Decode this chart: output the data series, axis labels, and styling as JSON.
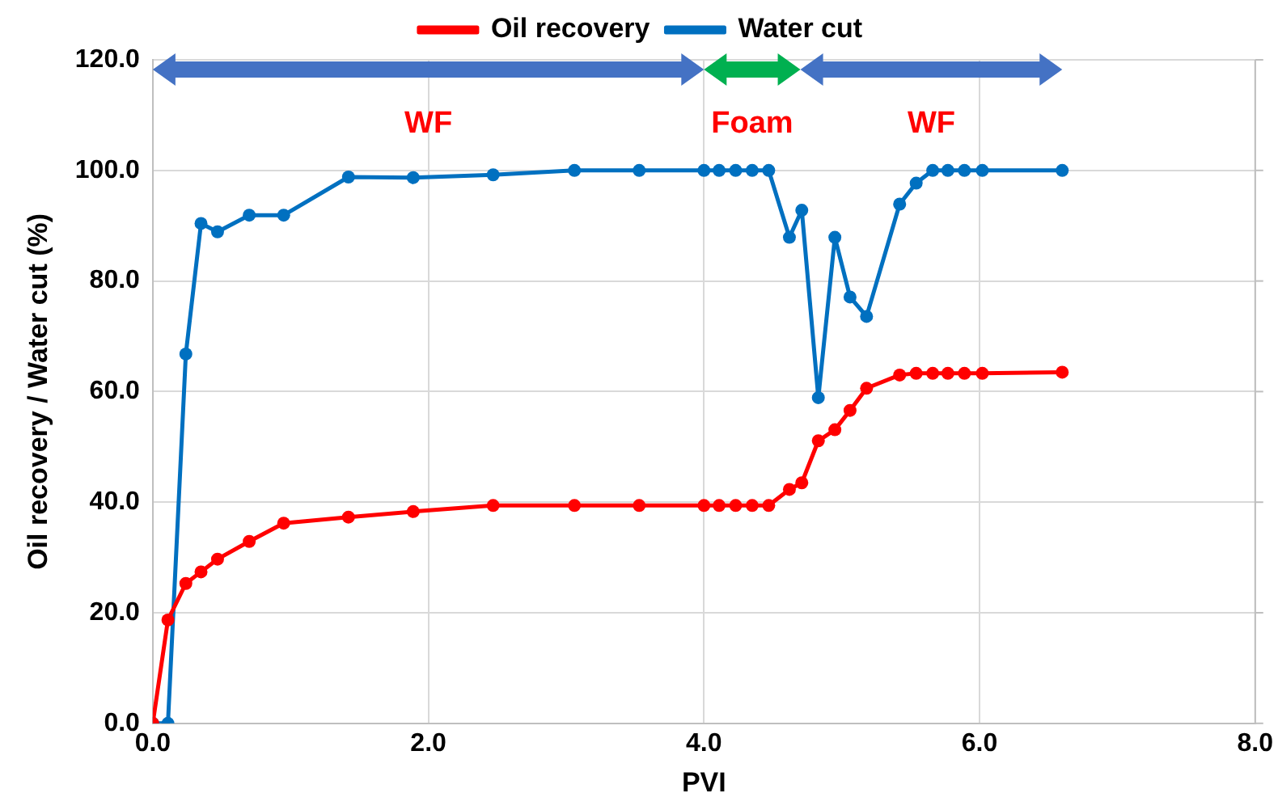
{
  "chart_data": {
    "type": "line",
    "xlabel": "PVI",
    "ylabel": "Oil recovery / Water cut (%)",
    "xlim": [
      0,
      8
    ],
    "xticks": [
      {
        "value": 0,
        "label": "0.0"
      },
      {
        "value": 2,
        "label": "2.0"
      },
      {
        "value": 4,
        "label": "4.0"
      },
      {
        "value": 6,
        "label": "6.0"
      },
      {
        "value": 8,
        "label": "8.0"
      }
    ],
    "ylim": [
      0,
      120
    ],
    "yticks": [
      {
        "value": 0,
        "label": "0.0"
      },
      {
        "value": 20,
        "label": "20.0"
      },
      {
        "value": 40,
        "label": "40.0"
      },
      {
        "value": 60,
        "label": "60.0"
      },
      {
        "value": 80,
        "label": "80.0"
      },
      {
        "value": 100,
        "label": "100.0"
      },
      {
        "value": 120,
        "label": "120.0"
      }
    ],
    "grid": true,
    "legend": "top",
    "marker": "circle",
    "line_style": "solid",
    "series": [
      {
        "name": "Oil recovery",
        "color": "#ff0000",
        "x": [
          0,
          0.11,
          0.24,
          0.35,
          0.47,
          0.7,
          0.95,
          1.42,
          1.89,
          2.47,
          3.06,
          3.53,
          4.0,
          4.11,
          4.23,
          4.35,
          4.47,
          4.62,
          4.71,
          4.83,
          4.95,
          5.06,
          5.18,
          5.42,
          5.54,
          5.66,
          5.77,
          5.89,
          6.02,
          6.6
        ],
        "values": [
          0,
          18.7,
          25.3,
          27.4,
          29.7,
          32.9,
          36.2,
          37.3,
          38.3,
          39.4,
          39.4,
          39.4,
          39.4,
          39.4,
          39.4,
          39.4,
          39.4,
          42.3,
          43.5,
          51.1,
          53.1,
          56.6,
          60.6,
          63.0,
          63.3,
          63.3,
          63.3,
          63.3,
          63.3,
          63.5
        ]
      },
      {
        "name": "Water cut",
        "color": "#0070c0",
        "x": [
          0,
          0.11,
          0.24,
          0.35,
          0.47,
          0.7,
          0.95,
          1.42,
          1.89,
          2.47,
          3.06,
          3.53,
          4.0,
          4.11,
          4.23,
          4.35,
          4.47,
          4.62,
          4.71,
          4.83,
          4.95,
          5.06,
          5.18,
          5.42,
          5.54,
          5.66,
          5.77,
          5.89,
          6.02,
          6.6
        ],
        "values": [
          0,
          0,
          66.8,
          90.4,
          88.9,
          91.9,
          91.9,
          98.8,
          98.7,
          99.2,
          100,
          100,
          100,
          100,
          100,
          100,
          100,
          87.9,
          92.8,
          58.9,
          87.9,
          77.1,
          73.6,
          93.9,
          97.7,
          100,
          100,
          100,
          100,
          100
        ]
      }
    ],
    "annotations": [
      "WF",
      "Foam",
      "WF"
    ]
  }
}
